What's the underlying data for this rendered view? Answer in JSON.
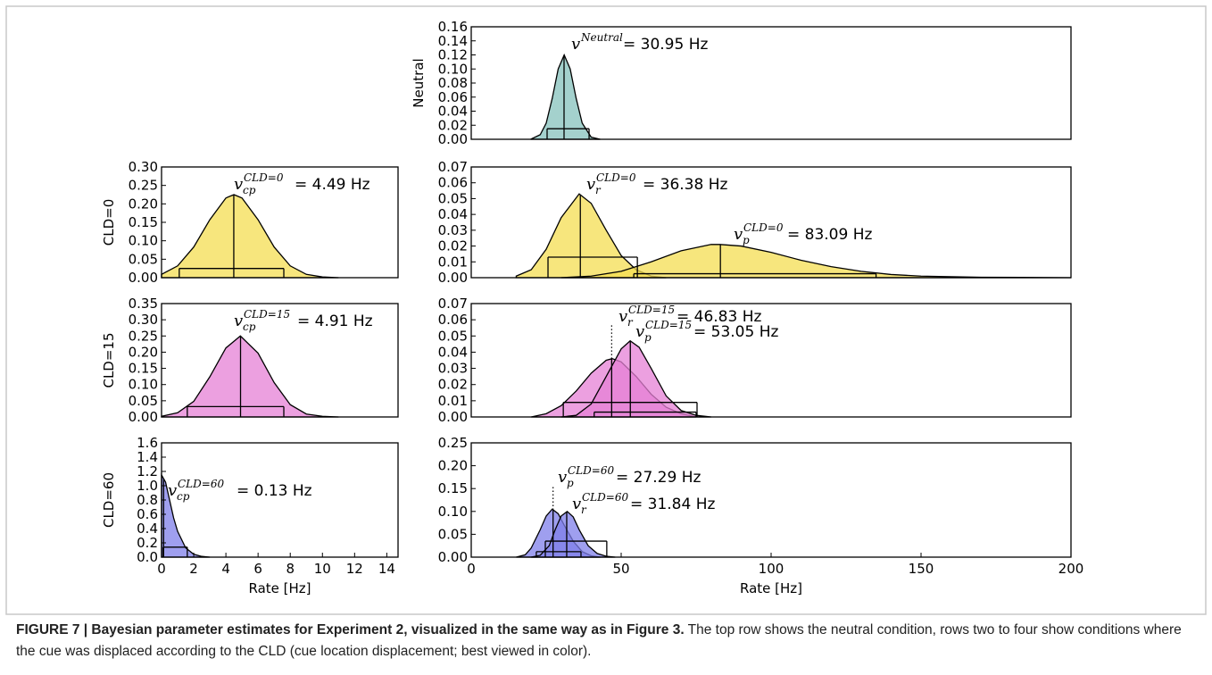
{
  "chart_data": [
    {
      "type": "density",
      "ylabel": "Neutral",
      "xlim": [
        0,
        200
      ],
      "ylim": [
        0,
        0.16
      ],
      "yticks": [
        {
          "value": 0,
          "label": "0.00"
        },
        0.02,
        0.04,
        0.06,
        0.08,
        {
          "value": 0.1,
          "label": "0.10"
        },
        0.12,
        0.14,
        0.16
      ],
      "series": [
        {
          "color": "#86c2bc",
          "x": [
            20,
            23,
            25,
            27,
            29,
            31,
            33,
            35,
            37,
            40,
            43
          ],
          "values": [
            0.0005,
            0.0065,
            0.023,
            0.058,
            0.1,
            0.12,
            0.1,
            0.058,
            0.023,
            0.003,
            0
          ],
          "mean": 30.95,
          "hdi": [
            25.3,
            39.3
          ],
          "hdi_level": 0.015,
          "label": {
            "symbol": "v",
            "sup": "Neutral"
          },
          "mean_label": "= 30.95 Hz"
        }
      ]
    },
    {
      "type": "density",
      "ylabel": "CLD=0",
      "xlim": [
        0,
        14.7
      ],
      "ylim": [
        0,
        0.3
      ],
      "yticks": [
        {
          "value": 0,
          "label": "0.00"
        },
        0.05,
        {
          "value": 0.1,
          "label": "0.10"
        },
        0.15,
        {
          "value": 0.2,
          "label": "0.20"
        },
        0.25,
        {
          "value": 0.3,
          "label": "0.30"
        }
      ],
      "series": [
        {
          "color": "#f4de52",
          "x": [
            0,
            1,
            2,
            3,
            4,
            4.5,
            5,
            6,
            7,
            8,
            9,
            10,
            11
          ],
          "values": [
            0.009,
            0.032,
            0.083,
            0.157,
            0.216,
            0.225,
            0.216,
            0.157,
            0.083,
            0.032,
            0.009,
            0.002,
            0
          ],
          "mean": 4.49,
          "hdi": [
            1.1,
            7.6
          ],
          "hdi_level": 0.025,
          "label": {
            "symbol": "v",
            "sup": "CLD=0",
            "sub": "cp"
          },
          "mean_label": "= 4.49 Hz"
        }
      ]
    },
    {
      "type": "density",
      "xlim": [
        0,
        200
      ],
      "ylim": [
        0,
        0.07
      ],
      "yticks": [
        {
          "value": 0,
          "label": "0.00"
        },
        0.01,
        0.02,
        0.03,
        0.04,
        0.05,
        0.06,
        0.07
      ],
      "series": [
        {
          "color": "#f4de52",
          "x": [
            15,
            20,
            25,
            30,
            36,
            40,
            45,
            50,
            55,
            60,
            65
          ],
          "values": [
            0.001,
            0.005,
            0.018,
            0.038,
            0.053,
            0.047,
            0.03,
            0.014,
            0.005,
            0.001,
            0
          ],
          "mean": 36.38,
          "hdi": [
            25.6,
            55.4
          ],
          "hdi_level": 0.013,
          "label": {
            "symbol": "v",
            "sup": "CLD=0",
            "sub": "r"
          },
          "mean_label": "= 36.38 Hz"
        },
        {
          "color": "#f4de52",
          "x": [
            30,
            40,
            50,
            60,
            70,
            80,
            83,
            90,
            100,
            110,
            120,
            130,
            140,
            150,
            170,
            200
          ],
          "values": [
            0,
            0.001,
            0.004,
            0.01,
            0.017,
            0.021,
            0.021,
            0.02,
            0.016,
            0.011,
            0.007,
            0.004,
            0.002,
            0.001,
            0.0003,
            0
          ],
          "mean": 83.09,
          "hdi": [
            54.2,
            135
          ],
          "hdi_level": 0.0025,
          "label": {
            "symbol": "v",
            "sup": "CLD=0",
            "sub": "p"
          },
          "mean_label": "= 83.09 Hz"
        }
      ]
    },
    {
      "type": "density",
      "ylabel": "CLD=15",
      "xlim": [
        0,
        14.7
      ],
      "ylim": [
        0,
        0.35
      ],
      "yticks": [
        {
          "value": 0,
          "label": "0.00"
        },
        0.05,
        {
          "value": 0.1,
          "label": "0.10"
        },
        0.15,
        {
          "value": 0.2,
          "label": "0.20"
        },
        0.25,
        {
          "value": 0.3,
          "label": "0.30"
        },
        0.35
      ],
      "series": [
        {
          "color": "#e580d6",
          "x": [
            0,
            1,
            2,
            3,
            4,
            4.9,
            6,
            7,
            8,
            9,
            10,
            11
          ],
          "values": [
            0.002,
            0.013,
            0.048,
            0.124,
            0.213,
            0.25,
            0.197,
            0.106,
            0.038,
            0.009,
            0.002,
            0
          ],
          "mean": 4.91,
          "hdi": [
            1.6,
            7.6
          ],
          "hdi_level": 0.032,
          "label": {
            "symbol": "v",
            "sup": "CLD=15",
            "sub": "cp"
          },
          "mean_label": "= 4.91 Hz"
        }
      ]
    },
    {
      "type": "density",
      "xlim": [
        0,
        200
      ],
      "ylim": [
        0,
        0.07
      ],
      "yticks": [
        {
          "value": 0,
          "label": "0.00"
        },
        0.01,
        0.02,
        0.03,
        0.04,
        0.05,
        0.06,
        0.07
      ],
      "series": [
        {
          "color": "#e580d6",
          "x": [
            20,
            25,
            30,
            35,
            40,
            45,
            47,
            50,
            55,
            60,
            65,
            70,
            75
          ],
          "values": [
            0,
            0.002,
            0.007,
            0.016,
            0.027,
            0.035,
            0.036,
            0.034,
            0.025,
            0.014,
            0.006,
            0.002,
            0
          ],
          "mean": 46.83,
          "hdi": [
            30.7,
            75.3
          ],
          "hdi_level": 0.009,
          "leader_line": true,
          "label": {
            "symbol": "v",
            "sup": "CLD=15",
            "sub": "r"
          },
          "mean_label": "= 46.83 Hz"
        },
        {
          "color": "#e580d6",
          "x": [
            30,
            35,
            40,
            45,
            50,
            53,
            56,
            60,
            65,
            70,
            75,
            80
          ],
          "values": [
            0,
            0.001,
            0.008,
            0.025,
            0.042,
            0.047,
            0.043,
            0.03,
            0.013,
            0.004,
            0.001,
            0
          ],
          "mean": 53.05,
          "hdi": [
            41,
            75
          ],
          "hdi_level": 0.003,
          "label": {
            "symbol": "v",
            "sup": "CLD=15",
            "sub": "p"
          },
          "mean_label": "= 53.05 Hz"
        }
      ]
    },
    {
      "type": "density",
      "ylabel": "CLD=60",
      "xlabel": "Rate [Hz]",
      "xlim": [
        0,
        14.7
      ],
      "ylim": [
        0,
        1.6
      ],
      "yticks": [
        {
          "value": 0,
          "label": "0.0"
        },
        0.2,
        0.4,
        0.6,
        0.8,
        {
          "value": 1,
          "label": "1.0"
        },
        1.2,
        1.4,
        1.6
      ],
      "xticks": [
        0,
        2,
        4,
        6,
        8,
        10,
        12,
        14
      ],
      "series": [
        {
          "color": "#7f7fea",
          "x": [
            0,
            0.25,
            0.5,
            0.75,
            1,
            1.5,
            2,
            2.5,
            3
          ],
          "values": [
            1.15,
            1.05,
            0.8,
            0.55,
            0.36,
            0.13,
            0.04,
            0.01,
            0
          ],
          "mean": 0.13,
          "hdi": [
            0.1,
            1.6
          ],
          "hdi_level": 0.14,
          "label": {
            "symbol": "v",
            "sup": "CLD=60",
            "sub": "cp"
          },
          "mean_label": "= 0.13 Hz"
        }
      ]
    },
    {
      "type": "density",
      "xlabel": "Rate [Hz]",
      "xlim": [
        0,
        200
      ],
      "ylim": [
        0,
        0.25
      ],
      "yticks": [
        {
          "value": 0,
          "label": "0.00"
        },
        0.05,
        {
          "value": 0.1,
          "label": "0.10"
        },
        0.15,
        {
          "value": 0.2,
          "label": "0.20"
        },
        0.25
      ],
      "xticks": [
        0,
        50,
        100,
        150,
        200
      ],
      "series": [
        {
          "color": "#7f7fea",
          "x": [
            15,
            18,
            20,
            23,
            25,
            27,
            29,
            31,
            34,
            37,
            40,
            43
          ],
          "values": [
            0,
            0.005,
            0.02,
            0.06,
            0.09,
            0.105,
            0.095,
            0.07,
            0.035,
            0.012,
            0.003,
            0
          ],
          "mean": 27.29,
          "hdi": [
            21.7,
            36.6
          ],
          "hdi_level": 0.012,
          "leader_line": true,
          "label": {
            "symbol": "v",
            "sup": "CLD=60",
            "sub": "p"
          },
          "mean_label": "= 27.29 Hz"
        },
        {
          "color": "#7f7fea",
          "x": [
            20,
            23,
            26,
            28,
            30,
            32,
            34,
            36,
            39,
            42,
            45,
            48
          ],
          "values": [
            0,
            0.004,
            0.025,
            0.06,
            0.09,
            0.1,
            0.088,
            0.06,
            0.025,
            0.008,
            0.002,
            0
          ],
          "mean": 31.84,
          "hdi": [
            24.7,
            45.2
          ],
          "hdi_level": 0.035,
          "label": {
            "symbol": "v",
            "sup": "CLD=60",
            "sub": "r"
          },
          "mean_label": "= 31.84 Hz"
        }
      ]
    }
  ],
  "caption": {
    "title": "FIGURE 7 | Bayesian parameter estimates for Experiment 2, visualized in the same way as in Figure 3.",
    "text": "The top row shows the neutral condition, rows two to four show conditions where the cue was displaced according to the CLD (cue location displacement; best viewed in color)."
  }
}
